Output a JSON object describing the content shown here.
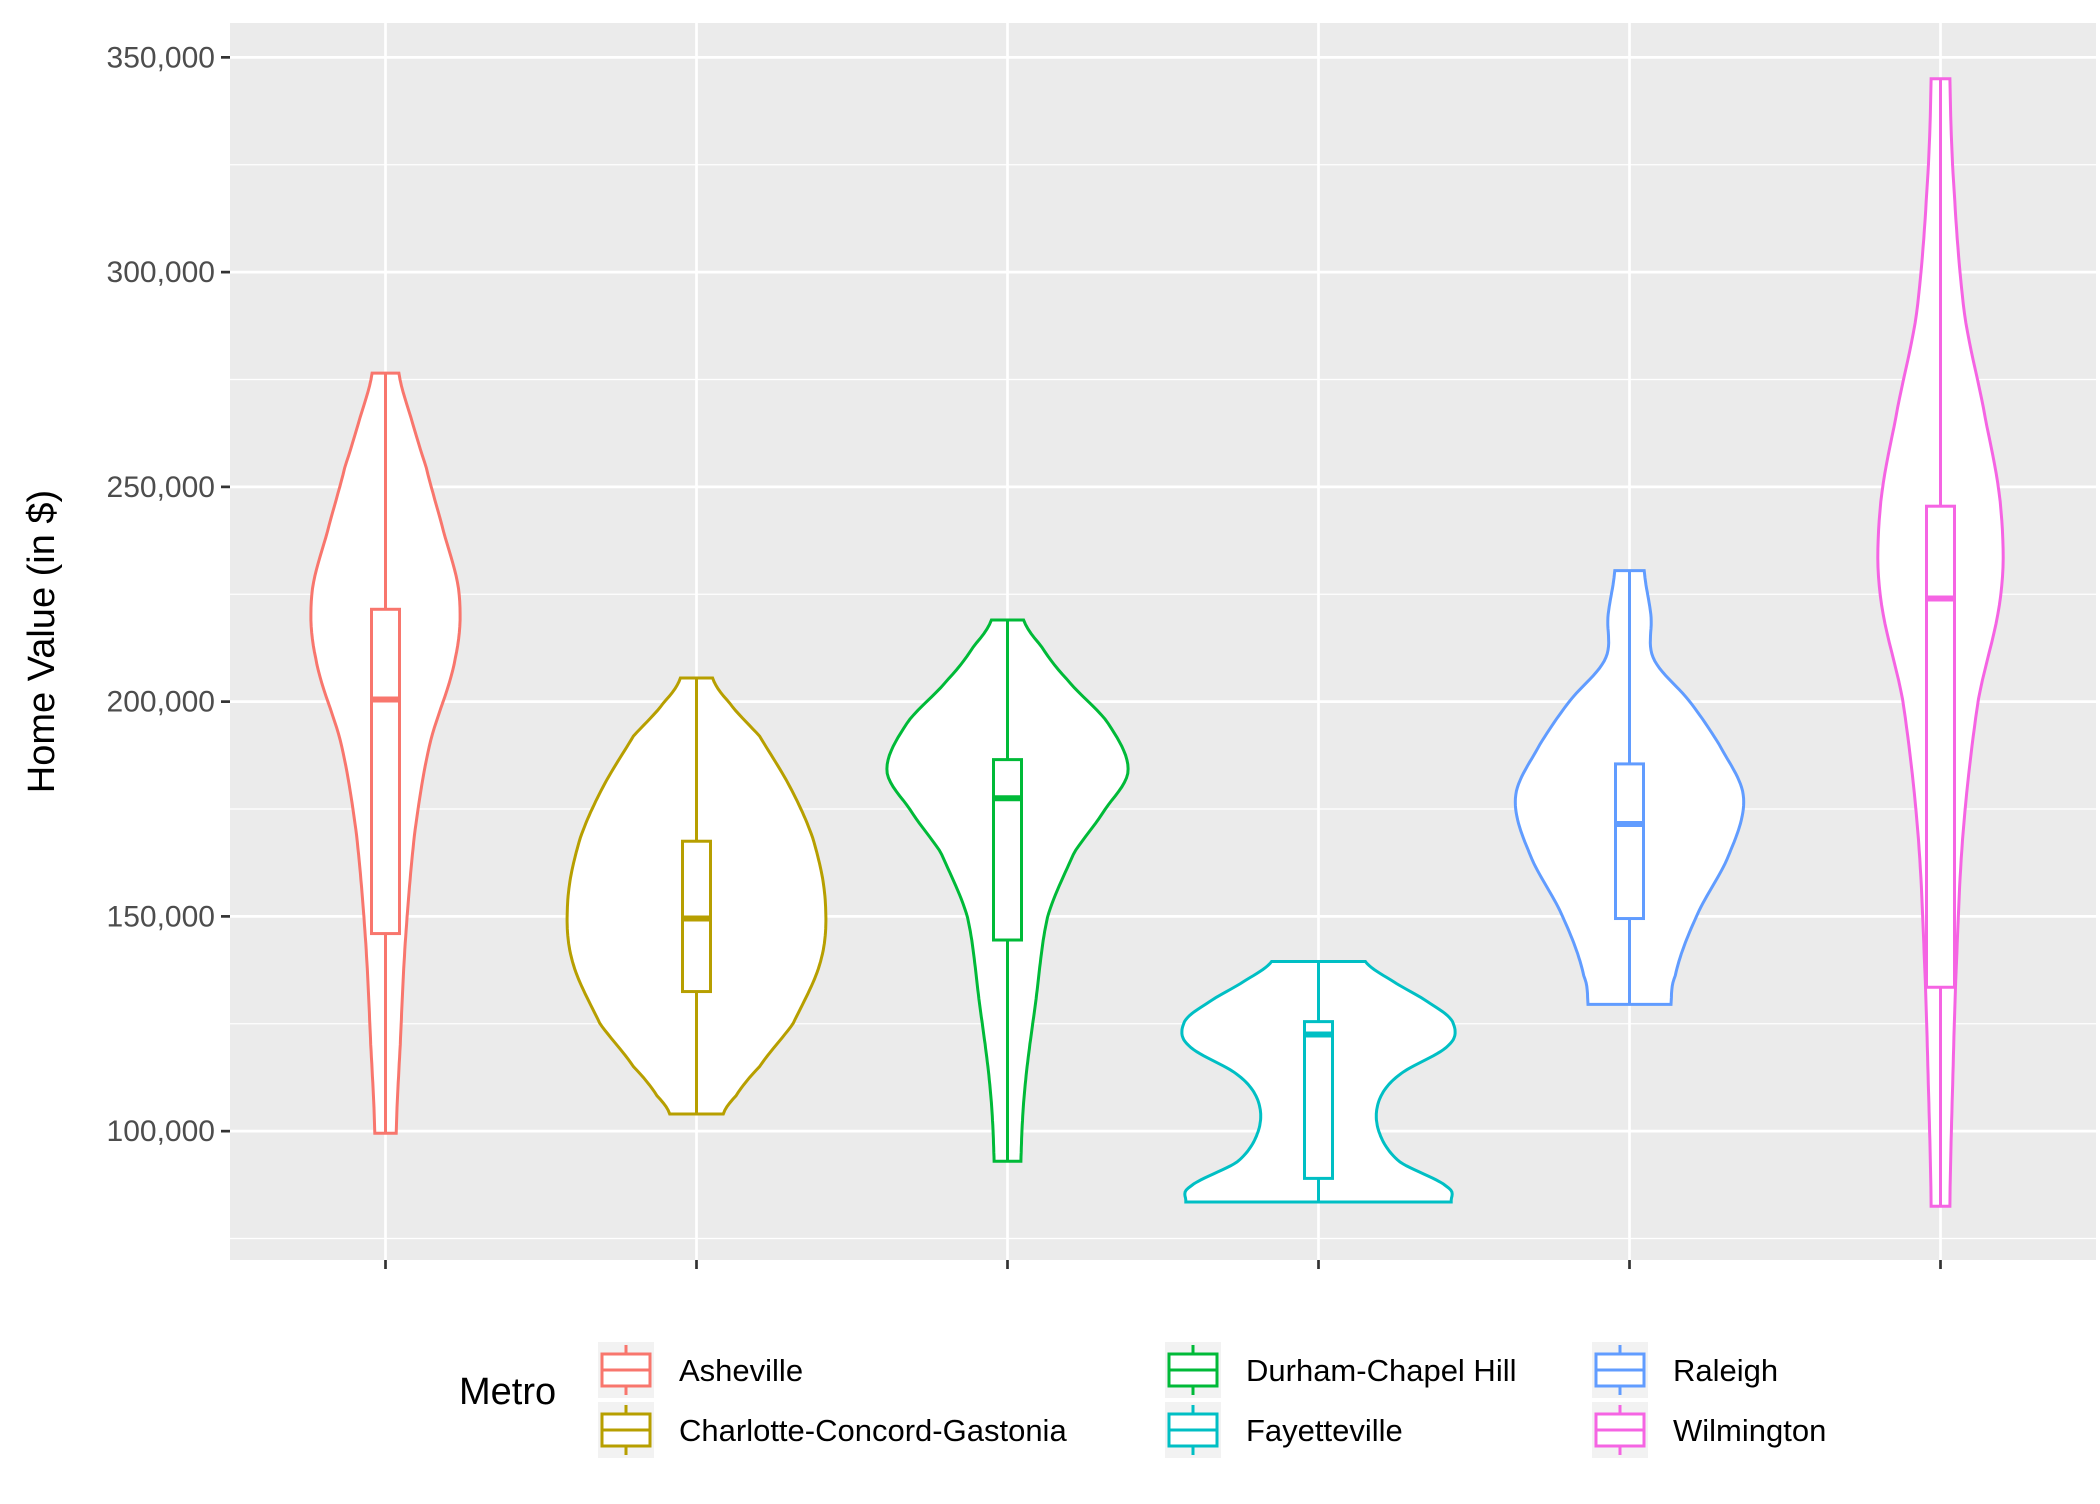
{
  "chart_data": {
    "type": "violin",
    "title": "",
    "xlabel": "",
    "ylabel": "Home Value (in $)",
    "ylim": [
      70000,
      358000
    ],
    "y_ticks": [
      100000,
      150000,
      200000,
      250000,
      300000,
      350000
    ],
    "y_tick_labels": [
      "100,000",
      "150,000",
      "200,000",
      "250,000",
      "300,000",
      "350,000"
    ],
    "x_tick_labels": [
      "",
      "",
      "",
      "",
      "",
      ""
    ],
    "grid": true,
    "legend": {
      "title": "Metro",
      "position": "bottom"
    },
    "series": [
      {
        "name": "Asheville",
        "color": "#F8766D",
        "min": 99500,
        "q1": 146000,
        "median": 200500,
        "q3": 221500,
        "max": 276500,
        "density": [
          [
            99500,
            0.08
          ],
          [
            120000,
            0.11
          ],
          [
            145000,
            0.15
          ],
          [
            170000,
            0.22
          ],
          [
            190000,
            0.33
          ],
          [
            210000,
            0.52
          ],
          [
            225000,
            0.55
          ],
          [
            240000,
            0.43
          ],
          [
            255000,
            0.3
          ],
          [
            265000,
            0.2
          ],
          [
            276500,
            0.1
          ]
        ]
      },
      {
        "name": "Charlotte-Concord-Gastonia",
        "color": "#B79F00",
        "min": 104000,
        "q1": 132500,
        "median": 149500,
        "q3": 167500,
        "max": 205500,
        "density": [
          [
            104000,
            0.2
          ],
          [
            108000,
            0.29
          ],
          [
            115000,
            0.47
          ],
          [
            125000,
            0.72
          ],
          [
            140000,
            0.93
          ],
          [
            154000,
            0.96
          ],
          [
            168000,
            0.87
          ],
          [
            180000,
            0.7
          ],
          [
            192000,
            0.47
          ],
          [
            200000,
            0.24
          ],
          [
            205500,
            0.12
          ]
        ]
      },
      {
        "name": "Durham-Chapel Hill",
        "color": "#00BA38",
        "min": 93000,
        "q1": 144500,
        "median": 177500,
        "q3": 186500,
        "max": 219000,
        "density": [
          [
            93000,
            0.1
          ],
          [
            110000,
            0.13
          ],
          [
            130000,
            0.21
          ],
          [
            150000,
            0.3
          ],
          [
            165000,
            0.5
          ],
          [
            175000,
            0.73
          ],
          [
            184000,
            0.9
          ],
          [
            195000,
            0.75
          ],
          [
            205000,
            0.45
          ],
          [
            213000,
            0.25
          ],
          [
            219000,
            0.12
          ]
        ]
      },
      {
        "name": "Fayetteville",
        "color": "#00BFC4",
        "min": 83500,
        "q1": 89000,
        "median": 122500,
        "q3": 125500,
        "max": 139500,
        "density": [
          [
            83500,
            0.99
          ],
          [
            87000,
            0.96
          ],
          [
            93000,
            0.6
          ],
          [
            100000,
            0.45
          ],
          [
            107000,
            0.45
          ],
          [
            113000,
            0.6
          ],
          [
            120000,
            0.97
          ],
          [
            125500,
            1.0
          ],
          [
            130000,
            0.82
          ],
          [
            135000,
            0.55
          ],
          [
            139500,
            0.35
          ]
        ]
      },
      {
        "name": "Raleigh",
        "color": "#619CFF",
        "min": 129500,
        "q1": 149500,
        "median": 171500,
        "q3": 185500,
        "max": 230500,
        "density": [
          [
            129500,
            0.31
          ],
          [
            136000,
            0.34
          ],
          [
            150000,
            0.5
          ],
          [
            165000,
            0.75
          ],
          [
            178000,
            0.85
          ],
          [
            190000,
            0.67
          ],
          [
            200000,
            0.45
          ],
          [
            210000,
            0.18
          ],
          [
            220000,
            0.16
          ],
          [
            230500,
            0.11
          ]
        ]
      },
      {
        "name": "Wilmington",
        "color": "#F564E3",
        "min": 82500,
        "q1": 133500,
        "median": 224000,
        "q3": 245500,
        "max": 345000,
        "density": [
          [
            82500,
            0.07
          ],
          [
            110000,
            0.09
          ],
          [
            140000,
            0.12
          ],
          [
            170000,
            0.17
          ],
          [
            200000,
            0.28
          ],
          [
            225000,
            0.45
          ],
          [
            245000,
            0.45
          ],
          [
            265000,
            0.34
          ],
          [
            290000,
            0.18
          ],
          [
            320000,
            0.1
          ],
          [
            345000,
            0.07
          ]
        ]
      }
    ]
  }
}
